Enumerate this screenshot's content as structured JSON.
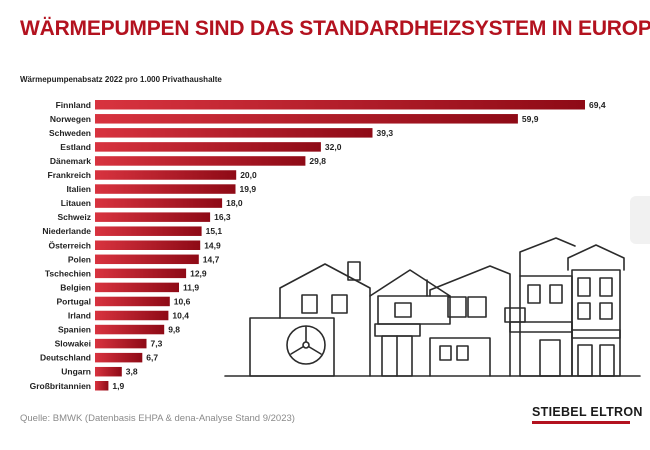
{
  "chart_data": {
    "type": "bar",
    "orientation": "horizontal",
    "title": "WÄRMEPUMPEN SIND DAS STANDARDHEIZSYSTEM IN EUROPA –",
    "subtitle": "Wärmepumpenabsatz 2022 pro 1.000 Privathaushalte",
    "categories": [
      "Finnland",
      "Norwegen",
      "Schweden",
      "Estland",
      "Dänemark",
      "Frankreich",
      "Italien",
      "Litauen",
      "Schweiz",
      "Niederlande",
      "Österreich",
      "Polen",
      "Tschechien",
      "Belgien",
      "Portugal",
      "Irland",
      "Spanien",
      "Slowakei",
      "Deutschland",
      "Ungarn",
      "Großbritannien"
    ],
    "values": [
      69.4,
      59.9,
      39.3,
      32.0,
      29.8,
      20.0,
      19.9,
      18.0,
      16.3,
      15.1,
      14.9,
      14.7,
      12.9,
      11.9,
      10.6,
      10.4,
      9.8,
      7.3,
      6.7,
      3.8,
      1.9
    ],
    "value_labels": [
      "69,4",
      "59,9",
      "39,3",
      "32,0",
      "29,8",
      "20,0",
      "19,9",
      "18,0",
      "16,3",
      "15,1",
      "14,9",
      "14,7",
      "12,9",
      "11,9",
      "10,6",
      "10,4",
      "9,8",
      "7,3",
      "6,7",
      "3,8",
      "1,9"
    ],
    "xlim": [
      0,
      69.4
    ],
    "grid": false,
    "legend": "none",
    "colors": {
      "bar_start": "#d8333f",
      "bar_end": "#8e0a16",
      "title": "#b3121f"
    }
  },
  "source": "Quelle: BMWK (Datenbasis EHPA & dena-Analyse Stand 9/2023)",
  "brand": {
    "logo_text": "STIEBEL ELTRON",
    "accent": "#b3121f"
  },
  "illustration": {
    "icon": "houses-with-heat-pump-icon"
  }
}
